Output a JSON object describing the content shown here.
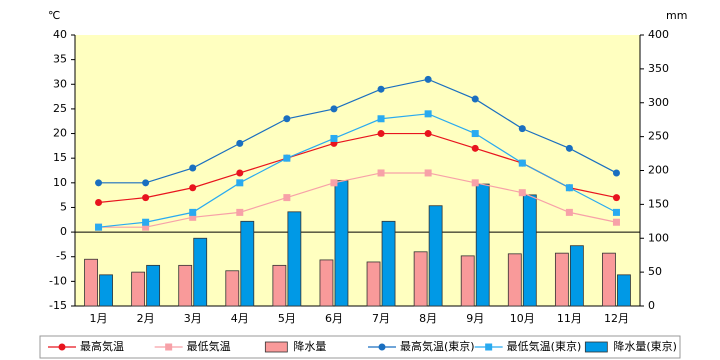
{
  "chart_data": {
    "type": "combo",
    "y_label": "℃",
    "y2_label": "mm",
    "categories": [
      "1月",
      "2月",
      "3月",
      "4月",
      "5月",
      "6月",
      "7月",
      "8月",
      "9月",
      "10月",
      "11月",
      "12月"
    ],
    "ylim": [
      -15,
      40
    ],
    "yticks": [
      -15,
      -10,
      -5,
      0,
      5,
      10,
      15,
      20,
      25,
      30,
      35,
      40
    ],
    "y2lim": [
      0,
      400
    ],
    "y2ticks": [
      0,
      50,
      100,
      150,
      200,
      250,
      300,
      350,
      400
    ],
    "series": [
      {
        "name": "最高気温",
        "type": "line",
        "marker": "circle",
        "color": "#e8141e",
        "values": [
          6,
          7,
          9,
          12,
          15,
          18,
          20,
          20,
          17,
          14,
          9,
          7
        ]
      },
      {
        "name": "最低気温",
        "type": "line",
        "marker": "square",
        "color": "#f7a1a8",
        "values": [
          1,
          1,
          3,
          4,
          7,
          10,
          12,
          12,
          10,
          8,
          4,
          2
        ]
      },
      {
        "name": "降水量",
        "type": "bar",
        "axis": "y2",
        "color": "#f99a9a",
        "values": [
          69,
          50,
          60,
          52,
          60,
          68,
          65,
          80,
          74,
          77,
          78,
          78
        ]
      },
      {
        "name": "最高気温(東京)",
        "type": "line",
        "marker": "circle",
        "color": "#1a6fc0",
        "values": [
          10,
          10,
          13,
          18,
          23,
          25,
          29,
          31,
          27,
          21,
          17,
          12
        ]
      },
      {
        "name": "最低気温(東京)",
        "type": "line",
        "marker": "square",
        "color": "#29aaf0",
        "values": [
          1,
          2,
          4,
          10,
          15,
          19,
          23,
          24,
          20,
          14,
          9,
          4
        ]
      },
      {
        "name": "降水量(東京)",
        "type": "bar",
        "axis": "y2",
        "color": "#0099e6",
        "values": [
          46,
          60,
          100,
          125,
          139,
          185,
          125,
          148,
          180,
          164,
          89,
          46
        ]
      }
    ]
  }
}
